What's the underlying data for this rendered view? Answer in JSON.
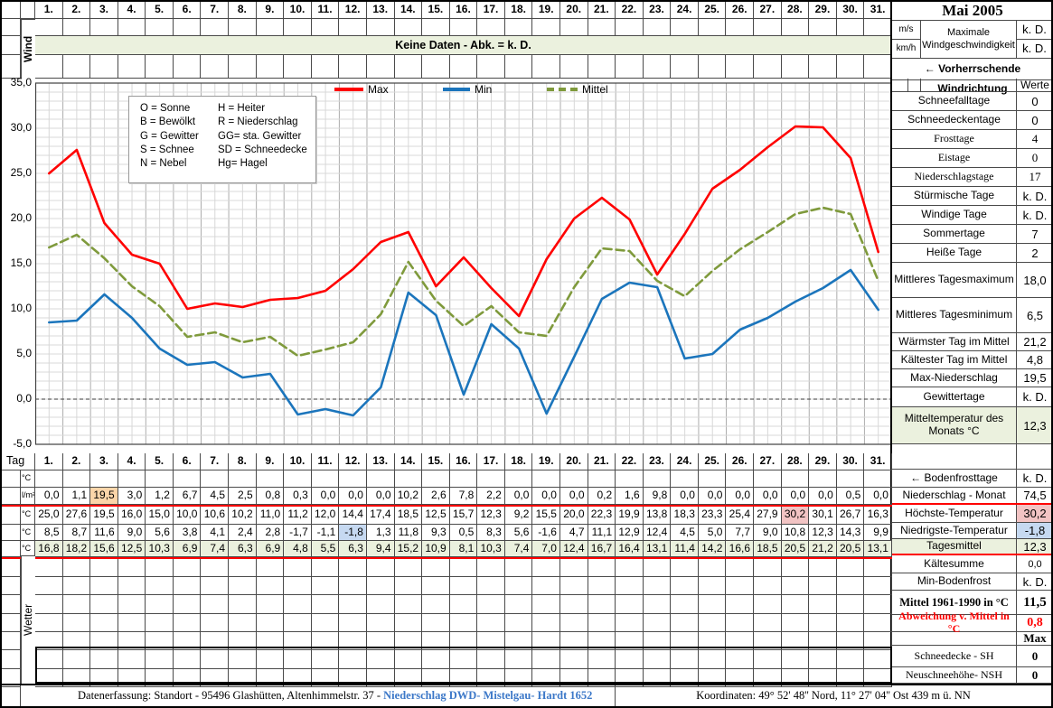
{
  "month_title": "Mai 2005",
  "wind": {
    "row_label": "Wind",
    "no_data_text": "Keine Daten - Abk. = k. D.",
    "unit_ms": "m/s",
    "unit_kmh": "km/h",
    "max_speed_label": "Maximale Windgeschwindigkeit",
    "max_speed_ms": "k. D.",
    "max_speed_kmh": "k. D.",
    "direction_label": "← Vorherrschende Windrichtung"
  },
  "days": [
    "1.",
    "2.",
    "3.",
    "4.",
    "5.",
    "6.",
    "7.",
    "8.",
    "9.",
    "10.",
    "11.",
    "12.",
    "13.",
    "14.",
    "15.",
    "16.",
    "17.",
    "18.",
    "19.",
    "20.",
    "21.",
    "22.",
    "23.",
    "24.",
    "25.",
    "26.",
    "27.",
    "28.",
    "29.",
    "30.",
    "31."
  ],
  "chart_data": {
    "type": "line",
    "x": [
      1,
      2,
      3,
      4,
      5,
      6,
      7,
      8,
      9,
      10,
      11,
      12,
      13,
      14,
      15,
      16,
      17,
      18,
      19,
      20,
      21,
      22,
      23,
      24,
      25,
      26,
      27,
      28,
      29,
      30,
      31
    ],
    "series": [
      {
        "name": "Max",
        "color": "#FF0000",
        "dash": "solid",
        "values": [
          25.0,
          27.6,
          19.5,
          16.0,
          15.0,
          10.0,
          10.6,
          10.2,
          11.0,
          11.2,
          12.0,
          14.4,
          17.4,
          18.5,
          12.5,
          15.7,
          12.3,
          9.2,
          15.5,
          20.0,
          22.3,
          19.9,
          13.8,
          18.3,
          23.3,
          25.4,
          27.9,
          30.2,
          30.1,
          26.7,
          16.3
        ]
      },
      {
        "name": "Min",
        "color": "#1B75BC",
        "dash": "solid",
        "values": [
          8.5,
          8.7,
          11.6,
          9.0,
          5.6,
          3.8,
          4.1,
          2.4,
          2.8,
          -1.7,
          -1.1,
          -1.8,
          1.3,
          11.8,
          9.3,
          0.5,
          8.3,
          5.6,
          -1.6,
          4.7,
          11.1,
          12.9,
          12.4,
          4.5,
          5.0,
          7.7,
          9.0,
          10.8,
          12.3,
          14.3,
          9.9
        ]
      },
      {
        "name": "Mittel",
        "color": "#7F9A3C",
        "dash": "dashed",
        "values": [
          16.8,
          18.2,
          15.6,
          12.5,
          10.3,
          6.9,
          7.4,
          6.3,
          6.9,
          4.8,
          5.5,
          6.3,
          9.4,
          15.2,
          10.9,
          8.1,
          10.3,
          7.4,
          7.0,
          12.4,
          16.7,
          16.4,
          13.1,
          11.4,
          14.2,
          16.6,
          18.5,
          20.5,
          21.2,
          20.5,
          13.1
        ]
      }
    ],
    "ylim": [
      -5,
      35
    ],
    "yticks": [
      {
        "v": 35,
        "label": "35,0"
      },
      {
        "v": 30,
        "label": "30,0"
      },
      {
        "v": 25,
        "label": "25,0"
      },
      {
        "v": 20,
        "label": "20,0"
      },
      {
        "v": 15,
        "label": "15,0"
      },
      {
        "v": 10,
        "label": "10,0"
      },
      {
        "v": 5,
        "label": "5,0"
      },
      {
        "v": 0,
        "label": "0,0"
      },
      {
        "v": -5,
        "label": "-5,0"
      }
    ],
    "grid": "fine grid, half-day vertical, 1 degree horizontal, dashed zero line",
    "legend_position": "top-inside"
  },
  "precipitation": [
    0.0,
    1.1,
    19.5,
    3.0,
    1.2,
    6.7,
    4.5,
    2.5,
    0.8,
    0.3,
    0.0,
    0.0,
    0.0,
    10.2,
    2.6,
    7.8,
    2.2,
    0.0,
    0.0,
    0.0,
    0.2,
    1.6,
    9.8,
    0.0,
    0.0,
    0.0,
    0.0,
    0.0,
    0.0,
    0.5,
    0.0
  ],
  "abbrev_box": {
    "pairs": [
      [
        "O = Sonne",
        "H = Heiter"
      ],
      [
        "B = Bewölkt",
        "R = Niederschlag"
      ],
      [
        "G = Gewitter",
        "GG= sta. Gewitter"
      ],
      [
        "S = Schnee",
        "SD = Schneedecke"
      ],
      [
        "N = Nebel",
        "Hg= Hagel"
      ]
    ]
  },
  "stats_rows": [
    {
      "type": "werte_header",
      "value": "Werte"
    },
    {
      "label": "Schneefalltage",
      "value": "0"
    },
    {
      "label": "Schneedeckentage",
      "value": "0"
    },
    {
      "label": "Frosttage",
      "value": "4",
      "serif": true
    },
    {
      "label": "Eistage",
      "value": "0",
      "serif": true
    },
    {
      "label": "Niederschlagstage",
      "value": "17",
      "serif": true
    },
    {
      "label": "Stürmische Tage",
      "value": "k. D."
    },
    {
      "label": "Windige Tage",
      "value": "k. D."
    },
    {
      "label": "Sommertage",
      "value": "7"
    },
    {
      "label": "Heiße Tage",
      "value": "2"
    },
    {
      "label": "Mittleres Tagesmaximum",
      "value": "18,0"
    },
    {
      "label": "Mittleres Tagesminimum",
      "value": "6,5"
    },
    {
      "label": "Wärmster Tag im Mittel",
      "value": "21,2"
    },
    {
      "label": "Kältester Tag im Mittel",
      "value": "4,8"
    },
    {
      "label": "Max-Niederschlag",
      "value": "19,5"
    },
    {
      "label": "Gewittertage",
      "value": "k. D."
    },
    {
      "label": "Mitteltemperatur des Monats °C",
      "value": "12,3",
      "green": true
    },
    {
      "type": "spacer"
    },
    {
      "label": "← Bodenfrosttage",
      "value": "k. D."
    },
    {
      "label": "Niederschlag - Monat",
      "value": "74,5",
      "red_line": true
    },
    {
      "label": "Höchste-Temperatur",
      "value": "30,2",
      "value_bg": "pink"
    },
    {
      "label": "Niedrigste-Temperatur",
      "value": "-1,8",
      "value_bg": "blue"
    },
    {
      "label": "Tagesmittel",
      "value": "12,3",
      "green": true,
      "red_line": true
    },
    {
      "label": "Kältesumme",
      "value": "0,0",
      "small_value": true
    },
    {
      "label": "Min-Bodenfrost",
      "value": "k. D."
    },
    {
      "label": "Mittel 1961-1990 in °C",
      "value": "11,5",
      "bold_serif": true
    },
    {
      "label": "Abweichung v. Mittel in °C",
      "value": "0,8",
      "red_text": true
    },
    {
      "type": "max_header",
      "value": "Max"
    },
    {
      "label": "Schneedecke -  SH",
      "value": "0",
      "serif": true,
      "bold_value": true
    },
    {
      "label": "Neuschneehöhe- NSH",
      "value": "0",
      "serif": true,
      "bold_value": true
    }
  ],
  "table": {
    "tag_label": "Tag",
    "wetter_label": "Wetter",
    "rows": [
      {
        "unit": "°C",
        "kind": "empty"
      },
      {
        "unit": "l/m²",
        "kind": "precip",
        "highlight_day": 3,
        "highlight": "peach",
        "red_line": true
      },
      {
        "unit": "°C",
        "kind": "series",
        "series": "Max",
        "highlight_day": 28,
        "highlight": "pink"
      },
      {
        "unit": "°C",
        "kind": "series",
        "series": "Min",
        "highlight_day": 12,
        "highlight": "blue"
      },
      {
        "unit": "°C",
        "kind": "series",
        "series": "Mittel",
        "row_bg": "green",
        "red_line": true
      }
    ]
  },
  "footer": {
    "left_text": "Datenerfassung:  Standort -  95496  Glashütten, Altenhimmelstr. 37 - ",
    "link_text": "Niederschlag DWD- Mistelgau- Hardt 1652",
    "right_text": "Koordinaten:  49° 52' 48'' Nord,   11° 27' 04'' Ost   439 m ü. NN"
  },
  "colors": {
    "green": "#EBF1DE",
    "peach": "#FBD5A9",
    "pink": "#F2C4C4",
    "blue": "#C6D9F1",
    "red": "#FF0000",
    "link_blue": "#3C78C8",
    "grid_minor": "#d8d8d8",
    "grid_day": "#adadad"
  }
}
